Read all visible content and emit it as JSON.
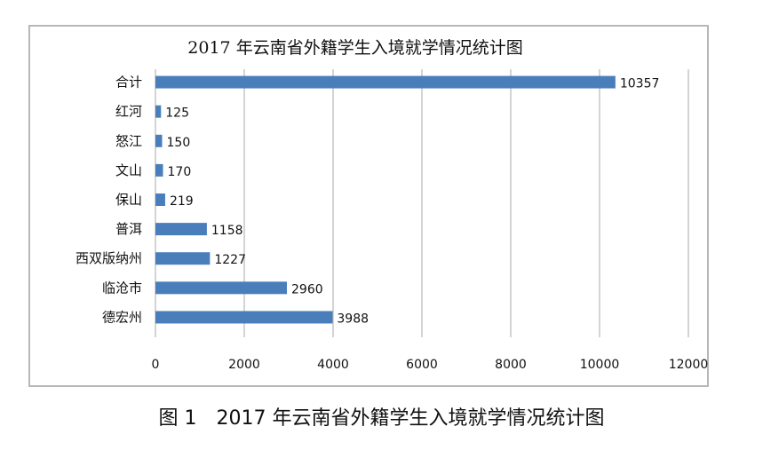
{
  "caption": "图 1　2017 年云南省外籍学生入境就学情况统计图",
  "chart_data": {
    "type": "bar",
    "orientation": "horizontal",
    "title": "2017 年云南省外籍学生入境就学情况统计图",
    "categories": [
      "合计",
      "红河",
      "怒江",
      "文山",
      "保山",
      "普洱",
      "西双版纳州",
      "临沧市",
      "德宏州"
    ],
    "values": [
      10357,
      125,
      150,
      170,
      219,
      1158,
      1227,
      2960,
      3988
    ],
    "xlim": [
      0,
      12000
    ],
    "xticks": [
      0,
      2000,
      4000,
      6000,
      8000,
      10000,
      12000
    ],
    "xlabel": "",
    "ylabel": "",
    "grid": "vertical",
    "legend": "none",
    "bar_color": "#4a7ebb",
    "grid_color": "#a9a9a9"
  }
}
